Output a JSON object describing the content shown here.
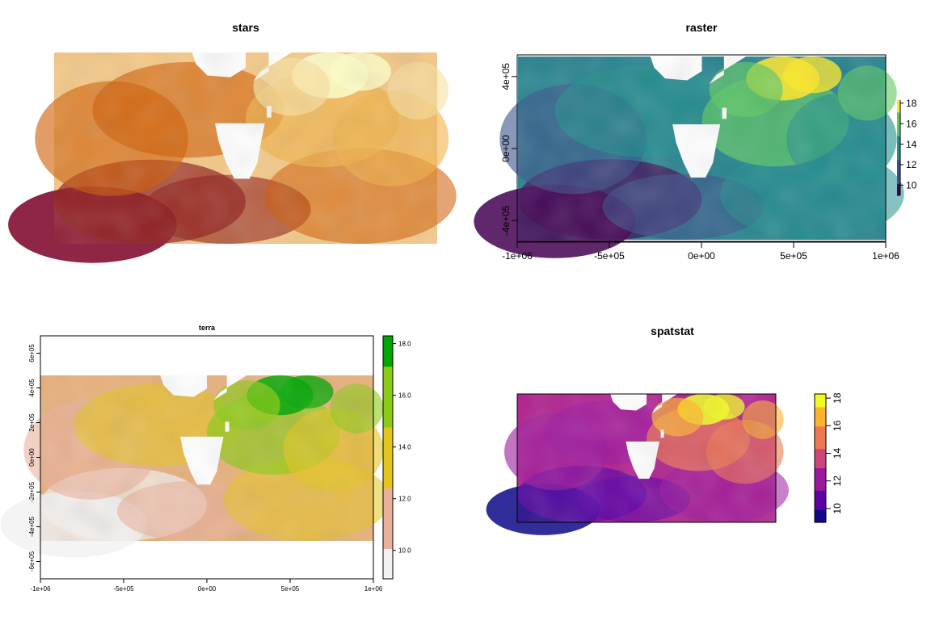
{
  "panels": {
    "stars": {
      "title": "stars"
    },
    "raster": {
      "title": "raster"
    },
    "terra": {
      "title": "terra"
    },
    "spatstat": {
      "title": "spatstat"
    }
  },
  "chart_data": [
    {
      "type": "heatmap",
      "title": "stars",
      "palette": [
        "#FFFFC8",
        "#F9E0A0",
        "#F0B24A",
        "#E58A12",
        "#CF5A00",
        "#8E1B19",
        "#7D0025"
      ],
      "axes_shown": false,
      "legend": "none"
    },
    {
      "type": "heatmap",
      "title": "raster",
      "x_ticks": [
        "-1e+06",
        "-5e+05",
        "0e+00",
        "5e+05",
        "1e+06"
      ],
      "y_ticks": [
        "-4e+05",
        "0e+00",
        "4e+05"
      ],
      "x_tick_values": [
        -1000000,
        -500000,
        0,
        500000,
        1000000
      ],
      "y_tick_values": [
        -400000,
        0,
        400000
      ],
      "xlim": [
        -1000000,
        1000000
      ],
      "ylim": [
        -520000,
        520000
      ],
      "legend_ticks": [
        "10",
        "12",
        "14",
        "16",
        "18"
      ],
      "legend_values": [
        10,
        12,
        14,
        16,
        18
      ],
      "value_range": [
        9,
        18.3
      ],
      "palette": [
        "#440154",
        "#3B528B",
        "#21908C",
        "#5DC863",
        "#FDE725"
      ],
      "legend": "right"
    },
    {
      "type": "heatmap",
      "title": "terra",
      "x_ticks": [
        "-1e+06",
        "-5e+05",
        "0e+00",
        "5e+05",
        "1e+06"
      ],
      "y_ticks": [
        "-6e+05",
        "-4e+05",
        "-2e+05",
        "0e+00",
        "2e+05",
        "4e+05",
        "6e+05"
      ],
      "x_tick_values": [
        -1000000,
        -500000,
        0,
        500000,
        1000000
      ],
      "y_tick_values": [
        -600000,
        -400000,
        -200000,
        0,
        200000,
        400000,
        600000
      ],
      "xlim": [
        -1000000,
        1000000
      ],
      "ylim": [
        -700000,
        700000
      ],
      "legend_ticks": [
        "10.0",
        "12.0",
        "14.0",
        "16.0",
        "18.0"
      ],
      "legend_values": [
        10,
        12,
        14,
        16,
        18
      ],
      "value_range": [
        8.9,
        18.3
      ],
      "palette": [
        "#F2F2F2",
        "#EBB09C",
        "#E4C51E",
        "#8BCB16",
        "#00A600"
      ],
      "legend": "right"
    },
    {
      "type": "heatmap",
      "title": "spatstat",
      "legend_ticks": [
        "10",
        "12",
        "14",
        "16",
        "18"
      ],
      "legend_values": [
        10,
        12,
        14,
        16,
        18
      ],
      "value_range": [
        9,
        18.3
      ],
      "palette": [
        "#0D0887",
        "#5C01A6",
        "#9C179E",
        "#CC4778",
        "#ED7953",
        "#FDB32F",
        "#F0F921"
      ],
      "legend": "right"
    }
  ]
}
